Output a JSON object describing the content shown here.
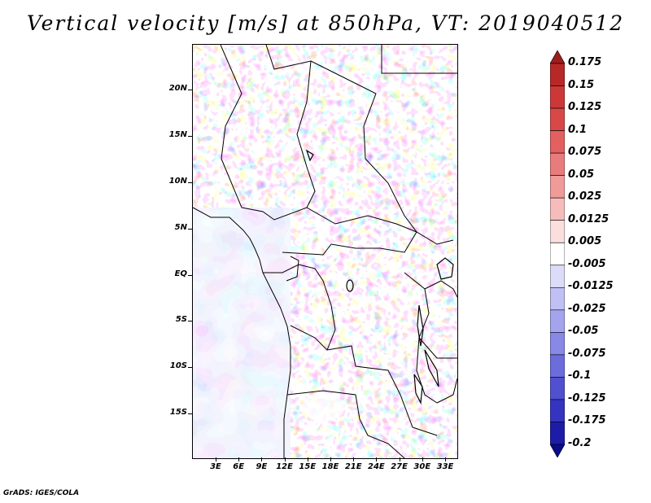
{
  "title": "Vertical velocity [m/s] at 850hPa, VT: 2019040512",
  "credit": "GrADS: IGES/COLA",
  "map": {
    "lat_labels": [
      "20N",
      "15N",
      "10N",
      "5N",
      "EQ",
      "5S",
      "10S",
      "15S"
    ],
    "lon_labels": [
      "3E",
      "6E",
      "9E",
      "12E",
      "15E",
      "18E",
      "21E",
      "24E",
      "27E",
      "30E",
      "33E"
    ],
    "field_colors": {
      "up_strong": "#c8383a",
      "up": "#f0a8a8",
      "neutral": "#ffffff",
      "down": "#b4b4ee",
      "down_strong": "#5a5ad6"
    }
  },
  "colorbar": {
    "labels": [
      "0.175",
      "0.15",
      "0.125",
      "0.1",
      "0.075",
      "0.05",
      "0.025",
      "0.0125",
      "0.005",
      "-0.005",
      "-0.0125",
      "-0.025",
      "-0.05",
      "-0.075",
      "-0.1",
      "-0.125",
      "-0.175",
      "-0.2"
    ],
    "colors": [
      "#9e1c1c",
      "#b82828",
      "#cc3838",
      "#d84848",
      "#e26060",
      "#e87c7c",
      "#f09a9a",
      "#f6bcbc",
      "#fbdede",
      "#ffffff",
      "#dcdcf8",
      "#c0c0f4",
      "#a4a4ee",
      "#8888e6",
      "#6c6cdc",
      "#5050d0",
      "#3434c0",
      "#1c1ca8",
      "#0a0a8c"
    ]
  }
}
